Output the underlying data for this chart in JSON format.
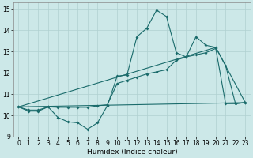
{
  "xlabel": "Humidex (Indice chaleur)",
  "xlim": [
    -0.5,
    23.5
  ],
  "ylim": [
    9.0,
    15.3
  ],
  "yticks": [
    9,
    10,
    11,
    12,
    13,
    14,
    15
  ],
  "xticks": [
    0,
    1,
    2,
    3,
    4,
    5,
    6,
    7,
    8,
    9,
    10,
    11,
    12,
    13,
    14,
    15,
    16,
    17,
    18,
    19,
    20,
    21,
    22,
    23
  ],
  "bg_color": "#cce8e8",
  "grid_color": "#b0d0d0",
  "line_color": "#1a6b6b",
  "series1_x": [
    0,
    1,
    2,
    3,
    4,
    5,
    6,
    7,
    8,
    9,
    10,
    11,
    12,
    13,
    14,
    15,
    16,
    17,
    18,
    19,
    20,
    21,
    22,
    23
  ],
  "series1_y": [
    10.4,
    10.2,
    10.2,
    10.4,
    9.9,
    9.7,
    9.65,
    9.35,
    9.65,
    10.45,
    11.85,
    11.9,
    13.7,
    14.1,
    14.95,
    14.65,
    12.95,
    12.75,
    13.7,
    13.3,
    13.2,
    12.35,
    10.55,
    10.6
  ],
  "series2_x": [
    0,
    1,
    2,
    3,
    4,
    5,
    6,
    7,
    8,
    9,
    10,
    11,
    12,
    13,
    14,
    15,
    16,
    17,
    18,
    19,
    20,
    21,
    22,
    23
  ],
  "series2_y": [
    10.4,
    10.25,
    10.25,
    10.4,
    10.38,
    10.38,
    10.38,
    10.38,
    10.45,
    10.5,
    11.5,
    11.65,
    11.8,
    11.95,
    12.05,
    12.15,
    12.6,
    12.75,
    12.85,
    12.95,
    13.15,
    10.55,
    10.55,
    10.6
  ],
  "series3_x": [
    0,
    23
  ],
  "series3_y": [
    10.4,
    10.6
  ],
  "series4_x": [
    0,
    20,
    23
  ],
  "series4_y": [
    10.4,
    13.2,
    10.6
  ]
}
